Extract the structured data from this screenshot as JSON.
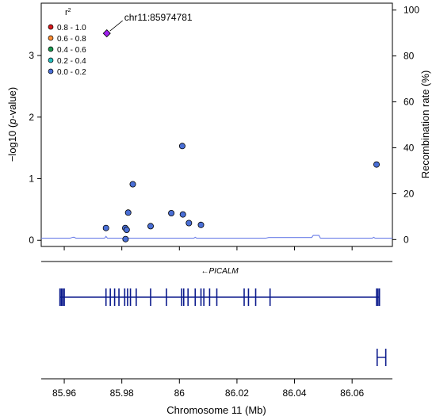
{
  "chart_data": {
    "type": "scatter",
    "title": "",
    "xlabel": "Chromosome 11 (Mb)",
    "ylabel_left": "−log10 (p-value)",
    "ylabel_left_parts": [
      "−log10 (",
      "p",
      "-value)"
    ],
    "ylabel_right": "Recombination rate (%)",
    "xlim": [
      85.952,
      86.074
    ],
    "ylim": [
      -0.1,
      3.85
    ],
    "y2lim": [
      -3,
      103
    ],
    "x_ticks": [
      85.96,
      85.98,
      86,
      86.02,
      86.04,
      86.06
    ],
    "x_tick_labels": [
      "85.96",
      "85.98",
      "86",
      "86.02",
      "86.04",
      "86.06"
    ],
    "y_ticks": [
      0,
      1,
      2,
      3
    ],
    "y_tick_labels": [
      "0",
      "1",
      "2",
      "3"
    ],
    "y2_ticks": [
      0,
      20,
      40,
      60,
      80,
      100
    ],
    "y2_tick_labels": [
      "0",
      "20",
      "40",
      "60",
      "80",
      "100"
    ],
    "grid": false,
    "legend": {
      "title": "r²",
      "placement": "top-left",
      "entries": [
        {
          "label": "0.8 - 1.0",
          "color": "#d7191c"
        },
        {
          "label": "0.6 - 0.8",
          "color": "#fd8e34"
        },
        {
          "label": "0.4 - 0.6",
          "color": "#1a9850"
        },
        {
          "label": "0.2 - 0.4",
          "color": "#26c0c0"
        },
        {
          "label": "0.0 - 0.2",
          "color": "#4a6fd6"
        }
      ]
    },
    "lead_snp": {
      "label": "chr11:85974781",
      "x": 85.97478,
      "y": 3.36,
      "color": "#a020f0"
    },
    "points": [
      {
        "x": 85.9745,
        "y": 0.2
      },
      {
        "x": 85.9812,
        "y": 0.2
      },
      {
        "x": 85.9817,
        "y": 0.17
      },
      {
        "x": 85.9822,
        "y": 0.45
      },
      {
        "x": 85.9813,
        "y": 0.02
      },
      {
        "x": 85.9838,
        "y": 0.91
      },
      {
        "x": 85.99,
        "y": 0.23
      },
      {
        "x": 85.9972,
        "y": 0.44
      },
      {
        "x": 86.0012,
        "y": 0.42
      },
      {
        "x": 86.001,
        "y": 1.53
      },
      {
        "x": 86.0033,
        "y": 0.28
      },
      {
        "x": 86.0075,
        "y": 0.25
      },
      {
        "x": 86.0685,
        "y": 1.23
      }
    ],
    "point_color": "#4a6fd6",
    "recombination_color": "#6a7de8",
    "recombination_rate": [
      [
        85.952,
        0.6
      ],
      [
        85.962,
        0.6
      ],
      [
        85.963,
        1.0
      ],
      [
        85.9635,
        1.0
      ],
      [
        85.964,
        0.6
      ],
      [
        85.974,
        0.6
      ],
      [
        85.9745,
        1.4
      ],
      [
        85.975,
        0.6
      ],
      [
        86.005,
        0.6
      ],
      [
        86.0055,
        1.0
      ],
      [
        86.006,
        0.6
      ],
      [
        86.03,
        0.6
      ],
      [
        86.031,
        0.9
      ],
      [
        86.046,
        0.9
      ],
      [
        86.0465,
        1.8
      ],
      [
        86.0485,
        1.8
      ],
      [
        86.049,
        0.6
      ],
      [
        86.067,
        0.6
      ],
      [
        86.0675,
        1.0
      ],
      [
        86.068,
        0.6
      ],
      [
        86.074,
        0.6
      ]
    ],
    "genes": [
      {
        "name": "PICALM",
        "strand_label": "←",
        "start": 85.9585,
        "end": 86.0695,
        "exons": [
          85.9585,
          85.959,
          85.9595,
          85.96,
          85.9745,
          85.976,
          85.9775,
          85.979,
          85.981,
          85.982,
          85.983,
          85.985,
          85.99,
          85.9955,
          86.0008,
          86.0015,
          86.003,
          86.0055,
          86.0075,
          86.0085,
          86.0105,
          86.013,
          86.0225,
          86.024,
          86.0265,
          86.0315,
          86.0685,
          86.069,
          86.0695
        ]
      }
    ],
    "small_feature": {
      "start": 86.0687,
      "end": 86.0717
    }
  }
}
